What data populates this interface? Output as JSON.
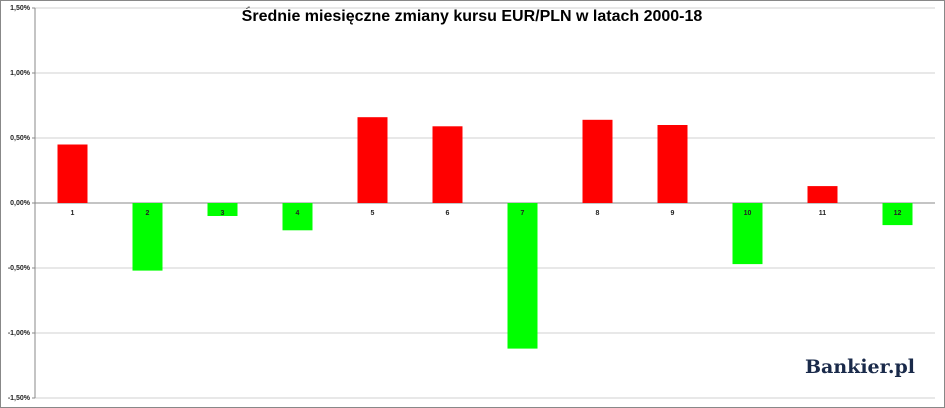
{
  "chart_data": {
    "type": "bar",
    "title": "Średnie miesięczne zmiany kursu EUR/PLN w latach 2000-18",
    "categories": [
      "1",
      "2",
      "3",
      "4",
      "5",
      "6",
      "7",
      "8",
      "9",
      "10",
      "11",
      "12"
    ],
    "values": [
      0.45,
      -0.52,
      -0.1,
      -0.21,
      0.66,
      0.59,
      -1.12,
      0.64,
      0.6,
      -0.47,
      0.13,
      -0.17
    ],
    "positive_color": "#ff0000",
    "negative_color": "#00ff00",
    "ylim": [
      -1.5,
      1.5
    ],
    "yticks": [
      {
        "value": -1.5,
        "label": "-1,50%"
      },
      {
        "value": -1.0,
        "label": "-1,00%"
      },
      {
        "value": -0.5,
        "label": "-0,50%"
      },
      {
        "value": 0,
        "label": "0,00%"
      },
      {
        "value": 0.5,
        "label": "0,50%"
      },
      {
        "value": 1.0,
        "label": "1,00%"
      },
      {
        "value": 1.5,
        "label": "1,50%"
      }
    ],
    "grid": true,
    "watermark": "Bankier.pl"
  }
}
